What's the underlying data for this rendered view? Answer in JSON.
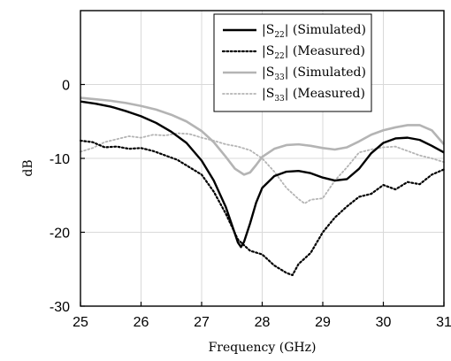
{
  "chart_data": {
    "type": "line",
    "xlabel": "Frequency (GHz)",
    "ylabel": "dB",
    "xlim": [
      25,
      31
    ],
    "ylim": [
      -30,
      10
    ],
    "xticks": [
      25,
      26,
      27,
      28,
      29,
      30,
      31
    ],
    "yticks": [
      -30,
      -20,
      -10,
      0
    ],
    "grid": true,
    "legend_position": "top-right",
    "series": [
      {
        "name": "|S22| (Simulated)",
        "legend_label": {
          "pre": "|S",
          "sub": "22",
          "post": "| (Simulated)"
        },
        "color": "#000000",
        "style": "solid",
        "x": [
          25,
          25.25,
          25.5,
          25.75,
          26,
          26.25,
          26.5,
          26.75,
          27,
          27.2,
          27.4,
          27.5,
          27.6,
          27.65,
          27.7,
          27.8,
          27.9,
          28,
          28.2,
          28.4,
          28.6,
          28.8,
          29,
          29.2,
          29.4,
          29.6,
          29.8,
          30,
          30.2,
          30.4,
          30.6,
          30.8,
          31
        ],
        "y": [
          -2.3,
          -2.6,
          -3.0,
          -3.6,
          -4.3,
          -5.2,
          -6.4,
          -7.9,
          -10.3,
          -13.0,
          -16.6,
          -19.0,
          -21.4,
          -22.0,
          -21.3,
          -18.8,
          -16.0,
          -14.0,
          -12.4,
          -11.8,
          -11.7,
          -12.0,
          -12.6,
          -13.0,
          -12.8,
          -11.4,
          -9.3,
          -7.9,
          -7.3,
          -7.2,
          -7.5,
          -8.3,
          -9.2
        ]
      },
      {
        "name": "|S22| (Measured)",
        "legend_label": {
          "pre": "|S",
          "sub": "22",
          "post": "| (Measured)"
        },
        "color": "#000000",
        "style": "dotted",
        "x": [
          25,
          25.2,
          25.4,
          25.6,
          25.8,
          26,
          26.2,
          26.4,
          26.6,
          26.8,
          27,
          27.2,
          27.4,
          27.6,
          27.8,
          28,
          28.2,
          28.4,
          28.5,
          28.6,
          28.8,
          29,
          29.2,
          29.4,
          29.6,
          29.8,
          30,
          30.2,
          30.4,
          30.6,
          30.8,
          31
        ],
        "y": [
          -7.6,
          -7.8,
          -8.5,
          -8.4,
          -8.7,
          -8.6,
          -9.0,
          -9.6,
          -10.2,
          -11.2,
          -12.2,
          -14.5,
          -17.5,
          -21.0,
          -22.5,
          -23.0,
          -24.5,
          -25.5,
          -25.8,
          -24.3,
          -22.8,
          -20.0,
          -18.0,
          -16.5,
          -15.2,
          -14.8,
          -13.6,
          -14.2,
          -13.2,
          -13.5,
          -12.2,
          -11.5
        ]
      },
      {
        "name": "|S33| (Simulated)",
        "legend_label": {
          "pre": "|S",
          "sub": "33",
          "post": "| (Simulated)"
        },
        "color": "#b4b4b4",
        "style": "solid",
        "x": [
          25,
          25.25,
          25.5,
          25.75,
          26,
          26.25,
          26.5,
          26.75,
          27,
          27.2,
          27.4,
          27.55,
          27.7,
          27.8,
          27.9,
          28,
          28.2,
          28.4,
          28.6,
          28.8,
          29,
          29.2,
          29.4,
          29.6,
          29.8,
          30,
          30.2,
          30.4,
          30.6,
          30.8,
          31
        ],
        "y": [
          -1.8,
          -2.0,
          -2.2,
          -2.5,
          -2.9,
          -3.4,
          -4.1,
          -5.0,
          -6.3,
          -7.8,
          -9.8,
          -11.4,
          -12.2,
          -11.9,
          -10.9,
          -9.8,
          -8.7,
          -8.2,
          -8.1,
          -8.3,
          -8.6,
          -8.8,
          -8.5,
          -7.7,
          -6.8,
          -6.2,
          -5.8,
          -5.5,
          -5.5,
          -6.2,
          -8.1
        ]
      },
      {
        "name": "|S33| (Measured)",
        "legend_label": {
          "pre": "|S",
          "sub": "33",
          "post": "| (Measured)"
        },
        "color": "#b4b4b4",
        "style": "dotted",
        "x": [
          25,
          25.2,
          25.4,
          25.6,
          25.8,
          26,
          26.2,
          26.4,
          26.6,
          26.8,
          27,
          27.2,
          27.4,
          27.6,
          27.8,
          28,
          28.2,
          28.4,
          28.6,
          28.7,
          28.8,
          29,
          29.2,
          29.4,
          29.6,
          29.8,
          30,
          30.2,
          30.4,
          30.6,
          30.8,
          31
        ],
        "y": [
          -9.1,
          -8.6,
          -7.8,
          -7.4,
          -7.0,
          -7.2,
          -6.8,
          -6.9,
          -6.6,
          -6.7,
          -7.2,
          -7.6,
          -8.1,
          -8.4,
          -8.9,
          -10.0,
          -11.8,
          -14.0,
          -15.5,
          -16.1,
          -15.6,
          -15.4,
          -13.0,
          -11.2,
          -9.2,
          -8.8,
          -8.5,
          -8.4,
          -9.0,
          -9.6,
          -10.0,
          -10.5
        ]
      }
    ]
  }
}
